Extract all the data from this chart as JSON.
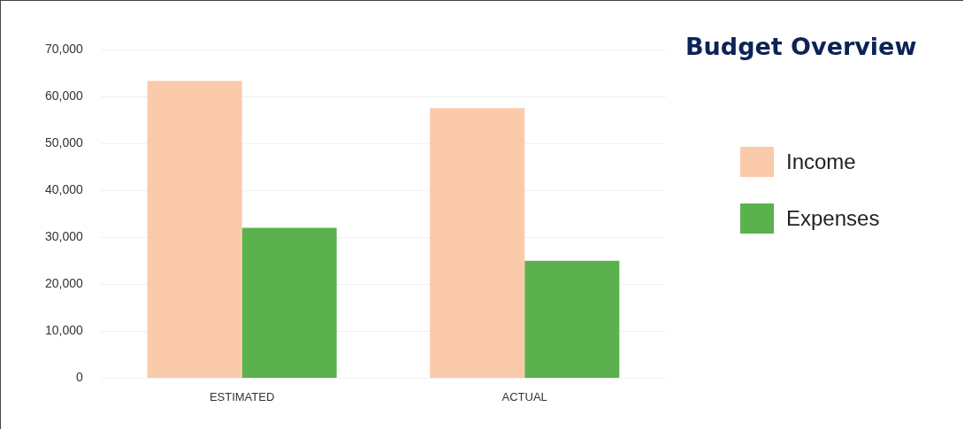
{
  "chart_data": {
    "type": "bar",
    "title": "Budget Overview",
    "categories": [
      "ESTIMATED",
      "ACTUAL"
    ],
    "series": [
      {
        "name": "Income",
        "color": "#fbcaab",
        "values": [
          63300,
          57500
        ]
      },
      {
        "name": "Expenses",
        "color": "#5bb14d",
        "values": [
          32000,
          25000
        ]
      }
    ],
    "ylim": [
      0,
      70000
    ],
    "yticks": [
      0,
      {
        "value": 10000,
        "label": "10,000"
      },
      {
        "value": 20000,
        "label": "20,000"
      },
      {
        "value": 30000,
        "label": "30,000"
      },
      {
        "value": 40000,
        "label": "40,000"
      },
      {
        "value": 50000,
        "label": "50,000"
      },
      {
        "value": 60000,
        "label": "60,000"
      },
      {
        "value": 70000,
        "label": "70,000"
      }
    ],
    "grid": "y",
    "legend": "right"
  }
}
